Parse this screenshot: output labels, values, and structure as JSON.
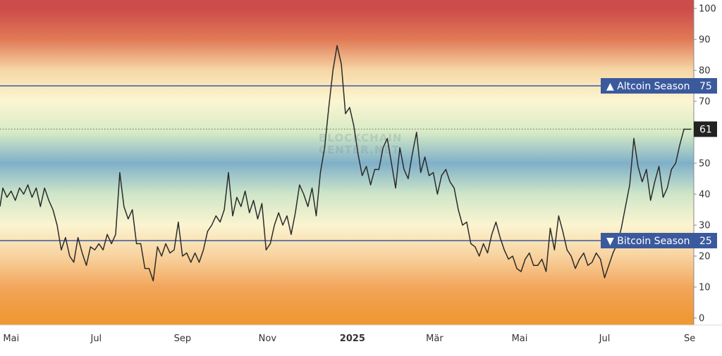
{
  "chart_data": {
    "type": "line",
    "watermark": [
      "BLOCKCHAIN",
      "CENTER.NET"
    ],
    "y_ticks": [
      0,
      10,
      20,
      30,
      40,
      50,
      60,
      70,
      80,
      90,
      100
    ],
    "ylim": [
      -3,
      103
    ],
    "x_labels": [
      {
        "label": "Mai",
        "date": "2024-05-01",
        "bold": false
      },
      {
        "label": "Jul",
        "date": "2024-07-01",
        "bold": false
      },
      {
        "label": "Sep",
        "date": "2024-09-01",
        "bold": false
      },
      {
        "label": "Nov",
        "date": "2024-11-01",
        "bold": false
      },
      {
        "label": "2025",
        "date": "2025-01-01",
        "bold": true
      },
      {
        "label": "Mär",
        "date": "2025-03-01",
        "bold": false
      },
      {
        "label": "Mai",
        "date": "2025-05-01",
        "bold": false
      },
      {
        "label": "Jul",
        "date": "2025-07-01",
        "bold": false
      },
      {
        "label": "Se",
        "date": "2025-09-01",
        "bold": false
      }
    ],
    "xlim": [
      "2024-04-23",
      "2025-09-01"
    ],
    "reference_lines": [
      {
        "value": 75,
        "label": "▲ Altcoin Season",
        "value_label": "75",
        "color": "#3b5a9e"
      },
      {
        "value": 25,
        "label": "▼ Bitcoin Season",
        "value_label": "25",
        "color": "#3b5a9e"
      }
    ],
    "current_value": {
      "value": 61,
      "label": "61",
      "color": "#222222"
    },
    "background_gradient": [
      {
        "value": 100,
        "color": "#cc4b4b"
      },
      {
        "value": 90,
        "color": "#e07a55"
      },
      {
        "value": 80,
        "color": "#f6d7a7"
      },
      {
        "value": 70,
        "color": "#fbf6d2"
      },
      {
        "value": 60,
        "color": "#d7ebc5"
      },
      {
        "value": 50,
        "color": "#7fb0c9"
      },
      {
        "value": 40,
        "color": "#cfe6c9"
      },
      {
        "value": 30,
        "color": "#fbf4d0"
      },
      {
        "value": 20,
        "color": "#f8d39f"
      },
      {
        "value": 10,
        "color": "#f2a65c"
      },
      {
        "value": 0,
        "color": "#ef9836"
      }
    ],
    "series": [
      {
        "color": "#2b2b2b",
        "points": [
          [
            "2024-04-23",
            36
          ],
          [
            "2024-04-25",
            42
          ],
          [
            "2024-04-28",
            39
          ],
          [
            "2024-05-01",
            41
          ],
          [
            "2024-05-04",
            38
          ],
          [
            "2024-05-07",
            42
          ],
          [
            "2024-05-10",
            40
          ],
          [
            "2024-05-13",
            43
          ],
          [
            "2024-05-16",
            39
          ],
          [
            "2024-05-19",
            42
          ],
          [
            "2024-05-22",
            36
          ],
          [
            "2024-05-25",
            42
          ],
          [
            "2024-05-28",
            38
          ],
          [
            "2024-05-31",
            35
          ],
          [
            "2024-06-03",
            30
          ],
          [
            "2024-06-06",
            22
          ],
          [
            "2024-06-09",
            26
          ],
          [
            "2024-06-12",
            20
          ],
          [
            "2024-06-15",
            18
          ],
          [
            "2024-06-18",
            26
          ],
          [
            "2024-06-21",
            21
          ],
          [
            "2024-06-24",
            17
          ],
          [
            "2024-06-27",
            23
          ],
          [
            "2024-06-30",
            22
          ],
          [
            "2024-07-03",
            24
          ],
          [
            "2024-07-06",
            22
          ],
          [
            "2024-07-09",
            27
          ],
          [
            "2024-07-12",
            24
          ],
          [
            "2024-07-15",
            27
          ],
          [
            "2024-07-18",
            47
          ],
          [
            "2024-07-21",
            36
          ],
          [
            "2024-07-24",
            32
          ],
          [
            "2024-07-27",
            35
          ],
          [
            "2024-07-30",
            24
          ],
          [
            "2024-08-02",
            24
          ],
          [
            "2024-08-05",
            16
          ],
          [
            "2024-08-08",
            16
          ],
          [
            "2024-08-11",
            12
          ],
          [
            "2024-08-14",
            23
          ],
          [
            "2024-08-17",
            20
          ],
          [
            "2024-08-20",
            24
          ],
          [
            "2024-08-23",
            21
          ],
          [
            "2024-08-26",
            22
          ],
          [
            "2024-08-29",
            31
          ],
          [
            "2024-09-01",
            20
          ],
          [
            "2024-09-04",
            21
          ],
          [
            "2024-09-07",
            18
          ],
          [
            "2024-09-10",
            21
          ],
          [
            "2024-09-13",
            18
          ],
          [
            "2024-09-16",
            22
          ],
          [
            "2024-09-19",
            28
          ],
          [
            "2024-09-22",
            30
          ],
          [
            "2024-09-25",
            33
          ],
          [
            "2024-09-28",
            31
          ],
          [
            "2024-10-01",
            35
          ],
          [
            "2024-10-04",
            47
          ],
          [
            "2024-10-07",
            33
          ],
          [
            "2024-10-10",
            39
          ],
          [
            "2024-10-13",
            36
          ],
          [
            "2024-10-16",
            41
          ],
          [
            "2024-10-19",
            34
          ],
          [
            "2024-10-22",
            38
          ],
          [
            "2024-10-25",
            32
          ],
          [
            "2024-10-28",
            37
          ],
          [
            "2024-10-31",
            22
          ],
          [
            "2024-11-03",
            24
          ],
          [
            "2024-11-06",
            30
          ],
          [
            "2024-11-09",
            34
          ],
          [
            "2024-11-12",
            30
          ],
          [
            "2024-11-15",
            33
          ],
          [
            "2024-11-18",
            27
          ],
          [
            "2024-11-21",
            34
          ],
          [
            "2024-11-24",
            43
          ],
          [
            "2024-11-27",
            40
          ],
          [
            "2024-11-30",
            36
          ],
          [
            "2024-12-03",
            42
          ],
          [
            "2024-12-06",
            33
          ],
          [
            "2024-12-09",
            47
          ],
          [
            "2024-12-12",
            55
          ],
          [
            "2024-12-15",
            68
          ],
          [
            "2024-12-18",
            80
          ],
          [
            "2024-12-21",
            88
          ],
          [
            "2024-12-24",
            82
          ],
          [
            "2024-12-27",
            66
          ],
          [
            "2024-12-30",
            68
          ],
          [
            "2025-01-02",
            62
          ],
          [
            "2025-01-05",
            53
          ],
          [
            "2025-01-08",
            46
          ],
          [
            "2025-01-11",
            49
          ],
          [
            "2025-01-14",
            43
          ],
          [
            "2025-01-17",
            48
          ],
          [
            "2025-01-20",
            48
          ],
          [
            "2025-01-23",
            55
          ],
          [
            "2025-01-26",
            58
          ],
          [
            "2025-01-29",
            50
          ],
          [
            "2025-02-01",
            42
          ],
          [
            "2025-02-04",
            55
          ],
          [
            "2025-02-07",
            48
          ],
          [
            "2025-02-10",
            45
          ],
          [
            "2025-02-13",
            53
          ],
          [
            "2025-02-16",
            60
          ],
          [
            "2025-02-19",
            47
          ],
          [
            "2025-02-22",
            52
          ],
          [
            "2025-02-25",
            46
          ],
          [
            "2025-02-28",
            47
          ],
          [
            "2025-03-03",
            40
          ],
          [
            "2025-03-06",
            46
          ],
          [
            "2025-03-09",
            48
          ],
          [
            "2025-03-12",
            44
          ],
          [
            "2025-03-15",
            42
          ],
          [
            "2025-03-18",
            35
          ],
          [
            "2025-03-21",
            30
          ],
          [
            "2025-03-24",
            31
          ],
          [
            "2025-03-27",
            24
          ],
          [
            "2025-03-30",
            23
          ],
          [
            "2025-04-02",
            20
          ],
          [
            "2025-04-05",
            24
          ],
          [
            "2025-04-08",
            21
          ],
          [
            "2025-04-11",
            27
          ],
          [
            "2025-04-14",
            31
          ],
          [
            "2025-04-17",
            26
          ],
          [
            "2025-04-20",
            22
          ],
          [
            "2025-04-23",
            19
          ],
          [
            "2025-04-26",
            20
          ],
          [
            "2025-04-29",
            16
          ],
          [
            "2025-05-02",
            15
          ],
          [
            "2025-05-05",
            19
          ],
          [
            "2025-05-08",
            21
          ],
          [
            "2025-05-11",
            17
          ],
          [
            "2025-05-14",
            17
          ],
          [
            "2025-05-17",
            19
          ],
          [
            "2025-05-20",
            15
          ],
          [
            "2025-05-23",
            29
          ],
          [
            "2025-05-26",
            22
          ],
          [
            "2025-05-29",
            33
          ],
          [
            "2025-06-01",
            28
          ],
          [
            "2025-06-04",
            22
          ],
          [
            "2025-06-07",
            20
          ],
          [
            "2025-06-10",
            16
          ],
          [
            "2025-06-13",
            19
          ],
          [
            "2025-06-16",
            21
          ],
          [
            "2025-06-19",
            17
          ],
          [
            "2025-06-22",
            18
          ],
          [
            "2025-06-25",
            21
          ],
          [
            "2025-06-28",
            19
          ],
          [
            "2025-07-01",
            13
          ],
          [
            "2025-07-04",
            17
          ],
          [
            "2025-07-07",
            21
          ],
          [
            "2025-07-10",
            24
          ],
          [
            "2025-07-13",
            29
          ],
          [
            "2025-07-16",
            36
          ],
          [
            "2025-07-19",
            43
          ],
          [
            "2025-07-22",
            58
          ],
          [
            "2025-07-25",
            49
          ],
          [
            "2025-07-28",
            44
          ],
          [
            "2025-07-31",
            48
          ],
          [
            "2025-08-03",
            38
          ],
          [
            "2025-08-06",
            44
          ],
          [
            "2025-08-09",
            49
          ],
          [
            "2025-08-12",
            39
          ],
          [
            "2025-08-15",
            42
          ],
          [
            "2025-08-18",
            48
          ],
          [
            "2025-08-21",
            50
          ],
          [
            "2025-08-24",
            56
          ],
          [
            "2025-08-27",
            61
          ],
          [
            "2025-08-30",
            61
          ],
          [
            "2025-09-01",
            61
          ]
        ]
      }
    ]
  }
}
